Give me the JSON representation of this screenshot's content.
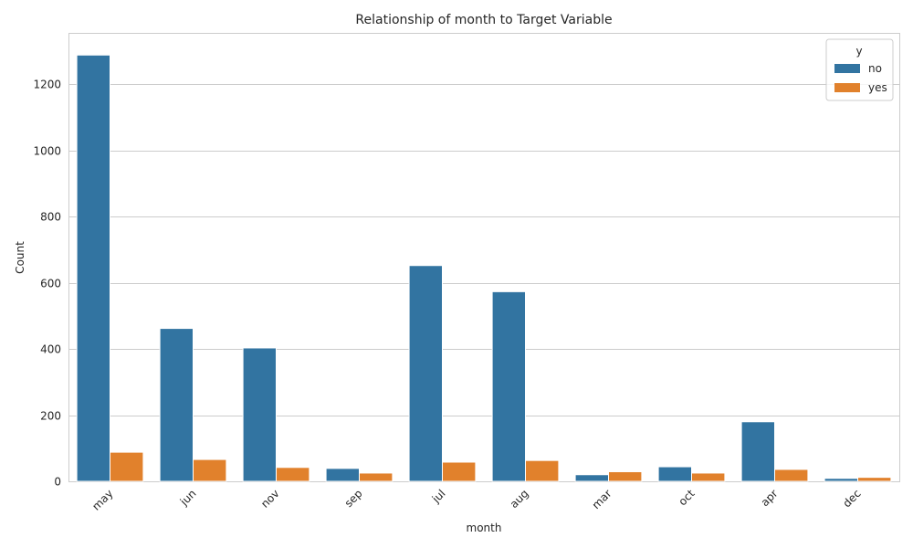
{
  "chart_data": {
    "type": "bar",
    "title": "Relationship of month to Target Variable",
    "xlabel": "month",
    "ylabel": "Count",
    "ylim": [
      0,
      1355
    ],
    "yticks": [
      0,
      200,
      400,
      600,
      800,
      1000,
      1200
    ],
    "grid": "horizontal",
    "legend_position": "top-right",
    "legend_title": "y",
    "categories": [
      "may",
      "jun",
      "nov",
      "sep",
      "jul",
      "aug",
      "mar",
      "oct",
      "apr",
      "dec"
    ],
    "series": [
      {
        "name": "no",
        "color": "#3274a1",
        "values": [
          1288,
          462,
          403,
          39,
          652,
          573,
          20,
          44,
          180,
          9
        ]
      },
      {
        "name": "yes",
        "color": "#e1812c",
        "values": [
          88,
          66,
          42,
          25,
          58,
          63,
          29,
          25,
          36,
          12
        ]
      }
    ]
  }
}
